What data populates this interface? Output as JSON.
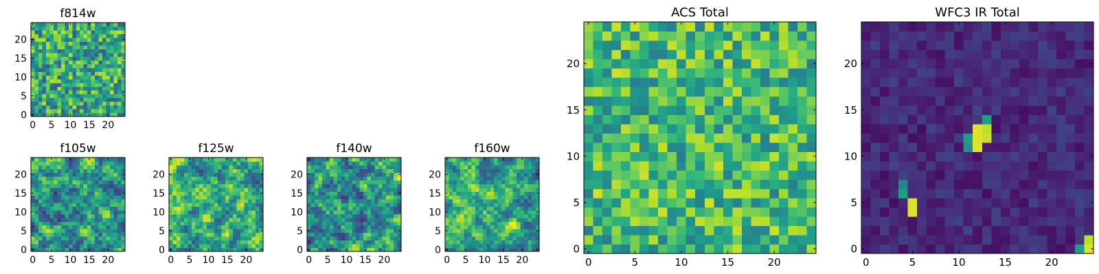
{
  "figure": {
    "colormap": "viridis",
    "colors": {
      "low": "#440154",
      "high": "#fde725",
      "frame": "#000000",
      "background": "#ffffff"
    }
  },
  "chart_data": [
    {
      "type": "heatmap",
      "title": "f814w",
      "grid_size": 25,
      "xlim": [
        0,
        24
      ],
      "ylim": [
        0,
        24
      ],
      "xticks": [
        "0",
        "5",
        "10",
        "15",
        "20"
      ],
      "yticks": [
        "0",
        "5",
        "10",
        "15",
        "20"
      ],
      "value_range": [
        0,
        1
      ],
      "pattern": "noise",
      "seed": 11,
      "base": 0.6,
      "spread": 0.3
    },
    {
      "type": "heatmap",
      "title": "f105w",
      "grid_size": 25,
      "xlim": [
        0,
        24
      ],
      "ylim": [
        0,
        24
      ],
      "xticks": [
        "0",
        "5",
        "10",
        "15",
        "20"
      ],
      "yticks": [
        "0",
        "5",
        "10",
        "15",
        "20"
      ],
      "value_range": [
        0,
        1
      ],
      "pattern": "smooth",
      "seed": 23,
      "base": 0.55,
      "spread": 0.4
    },
    {
      "type": "heatmap",
      "title": "f125w",
      "grid_size": 25,
      "xlim": [
        0,
        24
      ],
      "ylim": [
        0,
        24
      ],
      "xticks": [
        "0",
        "5",
        "10",
        "15",
        "20"
      ],
      "yticks": [
        "0",
        "5",
        "10",
        "15",
        "20"
      ],
      "value_range": [
        0,
        1
      ],
      "pattern": "smooth",
      "seed": 37,
      "base": 0.6,
      "spread": 0.4
    },
    {
      "type": "heatmap",
      "title": "f140w",
      "grid_size": 25,
      "xlim": [
        0,
        24
      ],
      "ylim": [
        0,
        24
      ],
      "xticks": [
        "0",
        "5",
        "10",
        "15",
        "20"
      ],
      "yticks": [
        "0",
        "5",
        "10",
        "15",
        "20"
      ],
      "value_range": [
        0,
        1
      ],
      "pattern": "smooth",
      "seed": 41,
      "base": 0.55,
      "spread": 0.45
    },
    {
      "type": "heatmap",
      "title": "f160w",
      "grid_size": 25,
      "xlim": [
        0,
        24
      ],
      "ylim": [
        0,
        24
      ],
      "xticks": [
        "0",
        "5",
        "10",
        "15",
        "20"
      ],
      "yticks": [
        "0",
        "5",
        "10",
        "15",
        "20"
      ],
      "value_range": [
        0,
        1
      ],
      "pattern": "smooth",
      "seed": 53,
      "base": 0.6,
      "spread": 0.4
    },
    {
      "type": "heatmap",
      "title": "ACS Total",
      "grid_size": 25,
      "xlim": [
        0,
        24
      ],
      "ylim": [
        0,
        24
      ],
      "xticks": [
        "0",
        "5",
        "10",
        "15",
        "20"
      ],
      "yticks": [
        "0",
        "5",
        "10",
        "15",
        "20"
      ],
      "value_range": [
        0,
        1
      ],
      "pattern": "noise",
      "seed": 67,
      "base": 0.68,
      "spread": 0.25
    },
    {
      "type": "heatmap",
      "title": "WFC3 IR Total",
      "grid_size": 25,
      "xlim": [
        0,
        24
      ],
      "ylim": [
        0,
        24
      ],
      "xticks": [
        "0",
        "5",
        "10",
        "15",
        "20"
      ],
      "yticks": [
        "0",
        "5",
        "10",
        "15",
        "20"
      ],
      "value_range": [
        0,
        1
      ],
      "pattern": "dark",
      "seed": 79,
      "base": 0.12,
      "spread": 0.08,
      "hot_cells": [
        {
          "x": 12,
          "y": 11,
          "value": 0.95
        },
        {
          "x": 12,
          "y": 12,
          "value": 0.95
        },
        {
          "x": 12,
          "y": 13,
          "value": 0.95
        },
        {
          "x": 13,
          "y": 12,
          "value": 0.92
        },
        {
          "x": 13,
          "y": 13,
          "value": 0.9
        },
        {
          "x": 11,
          "y": 12,
          "value": 0.55
        },
        {
          "x": 11,
          "y": 11,
          "value": 0.5
        },
        {
          "x": 13,
          "y": 14,
          "value": 0.55
        },
        {
          "x": 5,
          "y": 5,
          "value": 0.95
        },
        {
          "x": 5,
          "y": 4,
          "value": 0.95
        },
        {
          "x": 4,
          "y": 6,
          "value": 0.55
        },
        {
          "x": 4,
          "y": 7,
          "value": 0.45
        },
        {
          "x": 24,
          "y": 0,
          "value": 0.95
        },
        {
          "x": 24,
          "y": 1,
          "value": 0.9
        },
        {
          "x": 23,
          "y": 0,
          "value": 0.55
        }
      ]
    }
  ]
}
